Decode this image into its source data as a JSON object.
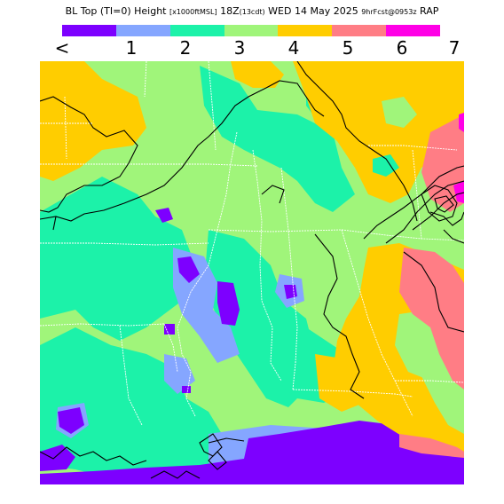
{
  "header": {
    "title_main": "BL Top (TI=0) Height",
    "title_unit": "[x1000ftMSL]",
    "title_time": "18Z",
    "title_local": "(13cdt)",
    "title_date": "WED 14 May 2025",
    "title_fcst": "9hrFcst@0953z",
    "title_model": "RAP"
  },
  "legend": {
    "ticks": [
      "<",
      "1",
      "2",
      "3",
      "4",
      "5",
      "6",
      "7"
    ],
    "colors": [
      "#7d00ff",
      "#85a6ff",
      "#1cf2a9",
      "#a0f57a",
      "#ffcd00",
      "#ff7d85",
      "#ff00e6"
    ]
  },
  "map": {
    "colors": {
      "lowest": "#7d00ff",
      "light_blue": "#85a6ff",
      "teal": "#1cf2a9",
      "light_green": "#a0f57a",
      "yellow": "#ffcd00",
      "pink": "#ff7d85",
      "magenta": "#ff00e6",
      "boundary": "#ffffff",
      "contour": "#000000"
    }
  }
}
